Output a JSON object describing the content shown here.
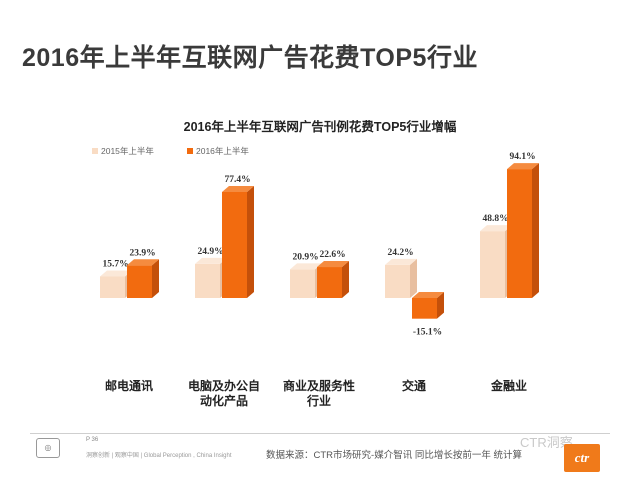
{
  "page": {
    "title": "2016年上半年互联网广告花费TOP5行业",
    "footer_page": "P 36",
    "footer_tag": "洞察创新 | 观察中国 | Global Perception , China Insight",
    "footer_source": "数据来源：CTR市场研究-媒介智讯  同比增长按前一年    统计算",
    "footer_brand": "CTR洞察",
    "ctr_logo_text": "ctr"
  },
  "chart_data": {
    "type": "bar",
    "title": "2016年上半年互联网广告刊例花费TOP5行业增幅",
    "categories": [
      "邮电通讯",
      "电脑及办公自动化产品",
      "商业及服务性行业",
      "交通",
      "金融业"
    ],
    "category_lines": [
      [
        "邮电通讯"
      ],
      [
        "电脑及办公自",
        "动化产品"
      ],
      [
        "商业及服务性",
        "行业"
      ],
      [
        "交通"
      ],
      [
        "金融业"
      ]
    ],
    "series": [
      {
        "name": "2015年上半年",
        "values": [
          15.7,
          24.9,
          20.9,
          24.2,
          48.8
        ],
        "color": "#f9dcc4",
        "side": "#e8bfa0",
        "top": "#fbe8d8"
      },
      {
        "name": "2016年上半年",
        "values": [
          23.9,
          77.4,
          22.6,
          -15.1,
          94.1
        ],
        "color": "#f26b0f",
        "side": "#c4500a",
        "top": "#f58b3f"
      }
    ],
    "value_suffix": "%",
    "legend_position": "top-left",
    "grid": false
  }
}
